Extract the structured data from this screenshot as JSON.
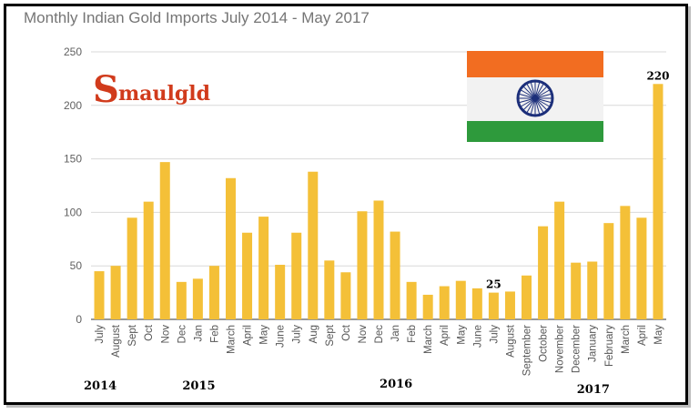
{
  "chart_data": {
    "type": "bar",
    "title": "Monthly Indian Gold Imports July 2014 - May 2017",
    "xlabel": "",
    "ylabel": "",
    "ylim": [
      0,
      250
    ],
    "yticks": [
      "0",
      "50",
      "100",
      "150",
      "200",
      "250"
    ],
    "grid": true,
    "bar_color": "#f4c038",
    "categories": [
      "July",
      "August",
      "Sept",
      "Oct",
      "Nov",
      "Dec",
      "Jan",
      "Feb",
      "March",
      "April",
      "May",
      "June",
      "July",
      "Aug",
      "Sept",
      "Oct",
      "Nov",
      "Dec",
      "Jan",
      "Feb",
      "March",
      "April",
      "May",
      "June",
      "July",
      "August",
      "September",
      "October",
      "November",
      "December",
      "January",
      "February",
      "March",
      "April",
      "May"
    ],
    "values": [
      45,
      50,
      95,
      110,
      147,
      35,
      38,
      50,
      132,
      81,
      96,
      51,
      81,
      138,
      55,
      44,
      101,
      111,
      82,
      35,
      23,
      31,
      36,
      29,
      25,
      26,
      41,
      87,
      110,
      53,
      54,
      90,
      106,
      95,
      220
    ],
    "data_labels": [
      {
        "index": 24,
        "text": "25"
      },
      {
        "index": 34,
        "text": "220"
      }
    ],
    "year_labels": [
      {
        "text": "2014",
        "index": 0
      },
      {
        "text": "2015",
        "index": 6
      },
      {
        "text": "2016",
        "index": 18
      },
      {
        "text": "2017",
        "index": 30
      }
    ]
  },
  "logo": {
    "text": "Smaulgld"
  },
  "flag": {
    "top_color": "#f26d21",
    "middle_color": "#f2f2f2",
    "bottom_color": "#2e9a3c",
    "chakra_color": "#1c2f7a"
  }
}
